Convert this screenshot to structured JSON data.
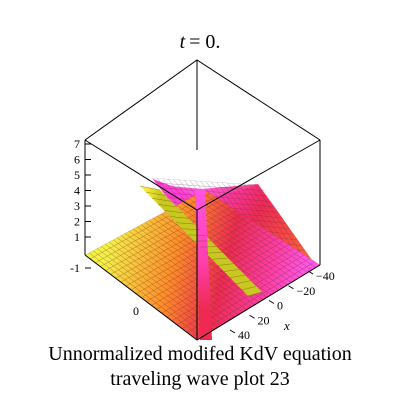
{
  "chart_data": {
    "type": "surface3d",
    "title": "t = 0.",
    "title_var": "t",
    "title_eq": "= 0.",
    "caption_line1": "Unnormalized modifed KdV equation",
    "caption_line2": "traveling wave plot 23",
    "x_axis": {
      "label": "x",
      "ticks": [
        -40,
        -20,
        0,
        20,
        40
      ],
      "tick_labels": [
        "−40",
        "−20",
        "0",
        "20",
        "40"
      ]
    },
    "y_axis": {
      "ticks": [
        0
      ],
      "tick_labels": [
        "0"
      ]
    },
    "z_axis": {
      "ticks": [
        -1,
        1,
        2,
        3,
        4,
        5,
        6,
        7
      ],
      "tick_labels": [
        "-1",
        "1",
        "2",
        "3",
        "4",
        "5",
        "6",
        "7"
      ],
      "range": [
        -1,
        7
      ]
    },
    "colormap": [
      "#f5f04a",
      "#ff7a30",
      "#ee2a52",
      "#ff3fae",
      "#ff55e6"
    ],
    "grid": true
  }
}
